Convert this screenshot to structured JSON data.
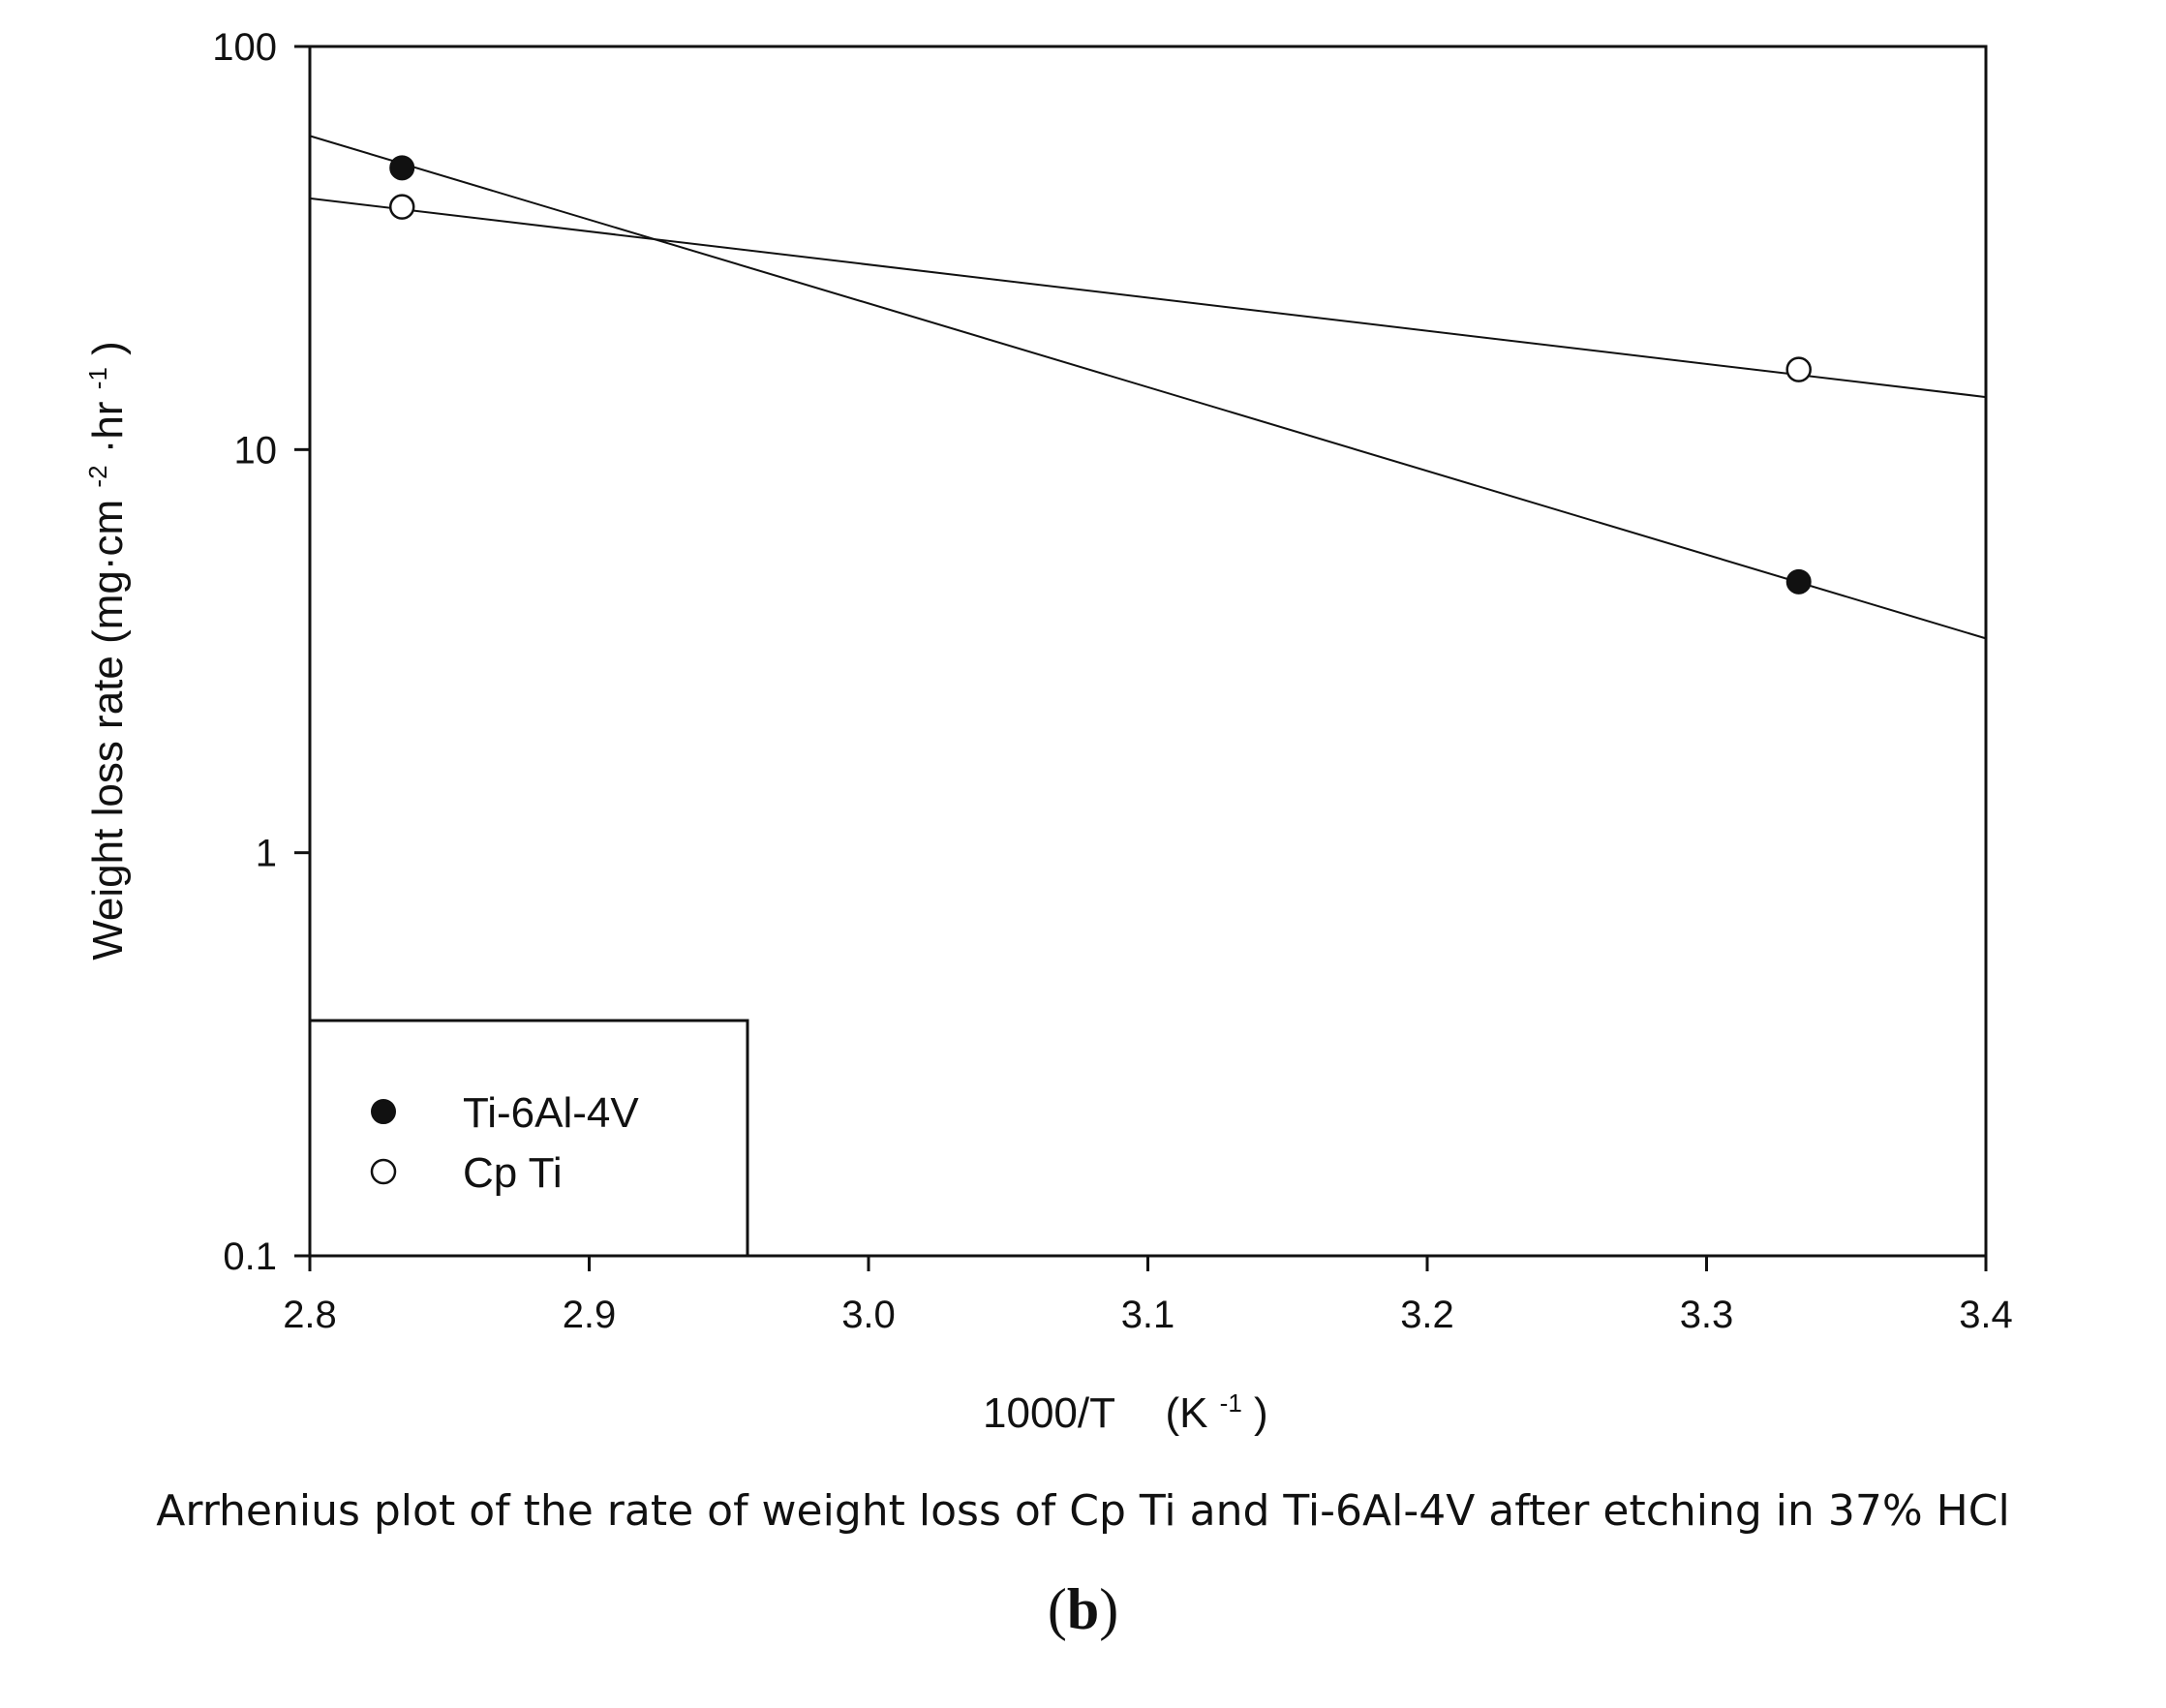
{
  "chart_data": {
    "type": "scatter",
    "y_scale": "log",
    "xlabel": "1000/T",
    "xlabel_unit": "(K",
    "xlabel_unit_sup": "-1",
    "xlabel_unit_close": ")",
    "ylabel_parts": [
      "Weight loss rate (mg·cm",
      "-2",
      "·hr",
      "-1",
      ")"
    ],
    "xlim": [
      2.8,
      3.4
    ],
    "ylim": [
      0.1,
      100
    ],
    "x_ticks": [
      2.8,
      2.9,
      3.0,
      3.1,
      3.2,
      3.3,
      3.4
    ],
    "x_tick_labels": [
      "2.8",
      "2.9",
      "3.0",
      "3.1",
      "3.2",
      "3.3",
      "3.4"
    ],
    "y_ticks": [
      0.1,
      1,
      10,
      100
    ],
    "y_tick_labels": [
      "0.1",
      "1",
      "10",
      "100"
    ],
    "legend_position": "bottom-left",
    "series": [
      {
        "name": "Ti-6Al-4V",
        "marker": "filled-circle",
        "points": [
          {
            "x": 2.833,
            "y": 50
          },
          {
            "x": 3.333,
            "y": 4.7
          }
        ],
        "fit_line": {
          "x": [
            2.8,
            3.4
          ],
          "y": [
            60,
            3.4
          ]
        }
      },
      {
        "name": "Cp Ti",
        "marker": "open-circle",
        "points": [
          {
            "x": 2.833,
            "y": 40
          },
          {
            "x": 3.333,
            "y": 15.8
          }
        ],
        "fit_line": {
          "x": [
            2.8,
            3.4
          ],
          "y": [
            42,
            13.5
          ]
        }
      }
    ]
  },
  "caption": "Arrhenius plot of the rate of weight loss of  Cp Ti and Ti-6Al-4V after etching in 37% HCl",
  "panel_label": {
    "open": "(",
    "letter": "b",
    "close": ")"
  },
  "colors": {
    "ink": "#111111",
    "marker_fill_open": "#ffffff"
  }
}
